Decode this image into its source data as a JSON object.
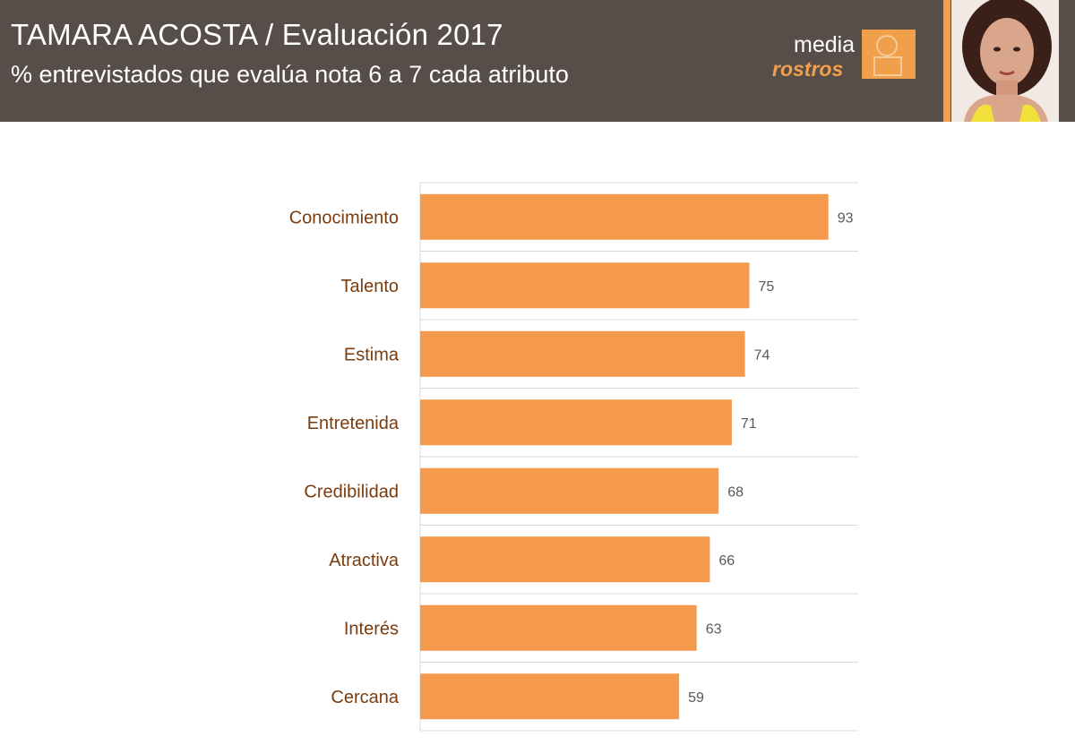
{
  "header": {
    "title": "TAMARA ACOSTA / Evaluación 2017",
    "subtitle": "% entrevistados que evalúa nota  6 a 7 cada atributo"
  },
  "logo": {
    "word1": "media",
    "word2": "rostros"
  },
  "colors": {
    "header_bg": "#574e49",
    "accent": "#f0a04b",
    "bar": "#f59a4c",
    "category_text": "#7a3c0e"
  },
  "chart_data": {
    "type": "bar",
    "orientation": "horizontal",
    "categories": [
      "Conocimiento",
      "Talento",
      "Estima",
      "Entretenida",
      "Credibilidad",
      "Atractiva",
      "Interés",
      "Cercana"
    ],
    "values": [
      93,
      75,
      74,
      71,
      68,
      66,
      63,
      59
    ],
    "title": "",
    "xlabel": "",
    "ylabel": "",
    "xlim": [
      0,
      100
    ],
    "grid": true,
    "data_labels": true
  }
}
